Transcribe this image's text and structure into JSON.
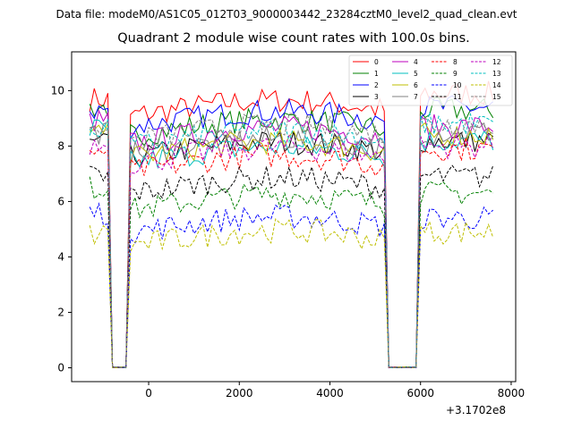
{
  "chart_data": {
    "type": "line",
    "suptitle": "Data file: modeM0/AS1C05_012T03_9000003442_23284cztM0_level2_quad_clean.evt",
    "title": "Quadrant 2 module wise count rates with 100.0s bins.",
    "xlabel": "",
    "ylabel": "",
    "x_offset_label": "+3.1702e8",
    "xlim": [
      -1700,
      8100
    ],
    "ylim": [
      -0.5,
      11.4
    ],
    "xticks": [
      0,
      2000,
      4000,
      6000,
      8000
    ],
    "xtick_labels": [
      "0",
      "2000",
      "4000",
      "6000",
      "8000"
    ],
    "yticks": [
      0,
      2,
      4,
      6,
      8,
      10
    ],
    "ytick_labels": [
      "0",
      "2",
      "4",
      "6",
      "8",
      "10"
    ],
    "legend_position": "upper right",
    "legend_columns": 4,
    "time_segments": [
      [
        -1300,
        -900
      ],
      [
        -850,
        -450
      ],
      [
        -400,
        5250
      ],
      [
        5300,
        5950
      ],
      [
        6000,
        7600
      ]
    ],
    "series": [
      {
        "name": "0",
        "color": "#ff0000",
        "dashed": false,
        "levels": [
          9.7,
          0,
          9.3,
          0,
          9.9
        ]
      },
      {
        "name": "1",
        "color": "#008000",
        "dashed": false,
        "levels": [
          9.4,
          0,
          8.6,
          0,
          9.3
        ]
      },
      {
        "name": "2",
        "color": "#0000ff",
        "dashed": false,
        "levels": [
          9.3,
          0,
          8.9,
          0,
          9.4
        ]
      },
      {
        "name": "3",
        "color": "#000000",
        "dashed": false,
        "levels": [
          8.1,
          0,
          7.8,
          0,
          8.2
        ]
      },
      {
        "name": "4",
        "color": "#bf00bf",
        "dashed": false,
        "levels": [
          8.9,
          0,
          8.3,
          0,
          8.7
        ]
      },
      {
        "name": "5",
        "color": "#00bfbf",
        "dashed": false,
        "levels": [
          8.6,
          0,
          7.6,
          0,
          8.2
        ]
      },
      {
        "name": "6",
        "color": "#bfbf00",
        "dashed": false,
        "levels": [
          8.4,
          0,
          7.8,
          0,
          8.4
        ]
      },
      {
        "name": "7",
        "color": "#808080",
        "dashed": false,
        "levels": [
          8.5,
          0,
          7.9,
          0,
          8.5
        ]
      },
      {
        "name": "8",
        "color": "#ff0000",
        "dashed": true,
        "levels": [
          7.8,
          0,
          7.3,
          0,
          7.9
        ]
      },
      {
        "name": "9",
        "color": "#008000",
        "dashed": true,
        "levels": [
          6.5,
          0,
          5.9,
          0,
          6.3
        ]
      },
      {
        "name": "10",
        "color": "#0000ff",
        "dashed": true,
        "levels": [
          5.6,
          0,
          5.1,
          0,
          5.4
        ]
      },
      {
        "name": "11",
        "color": "#000000",
        "dashed": true,
        "levels": [
          6.9,
          0,
          6.5,
          0,
          6.9
        ]
      },
      {
        "name": "12",
        "color": "#bf00bf",
        "dashed": true,
        "levels": [
          8.0,
          0,
          7.6,
          0,
          8.0
        ]
      },
      {
        "name": "13",
        "color": "#00bfbf",
        "dashed": true,
        "levels": [
          8.7,
          0,
          8.2,
          0,
          8.8
        ]
      },
      {
        "name": "14",
        "color": "#bfbf00",
        "dashed": true,
        "levels": [
          4.8,
          0,
          4.6,
          0,
          4.9
        ]
      },
      {
        "name": "15",
        "color": "#808080",
        "dashed": true,
        "levels": [
          8.8,
          0,
          8.4,
          0,
          8.8
        ]
      }
    ]
  }
}
